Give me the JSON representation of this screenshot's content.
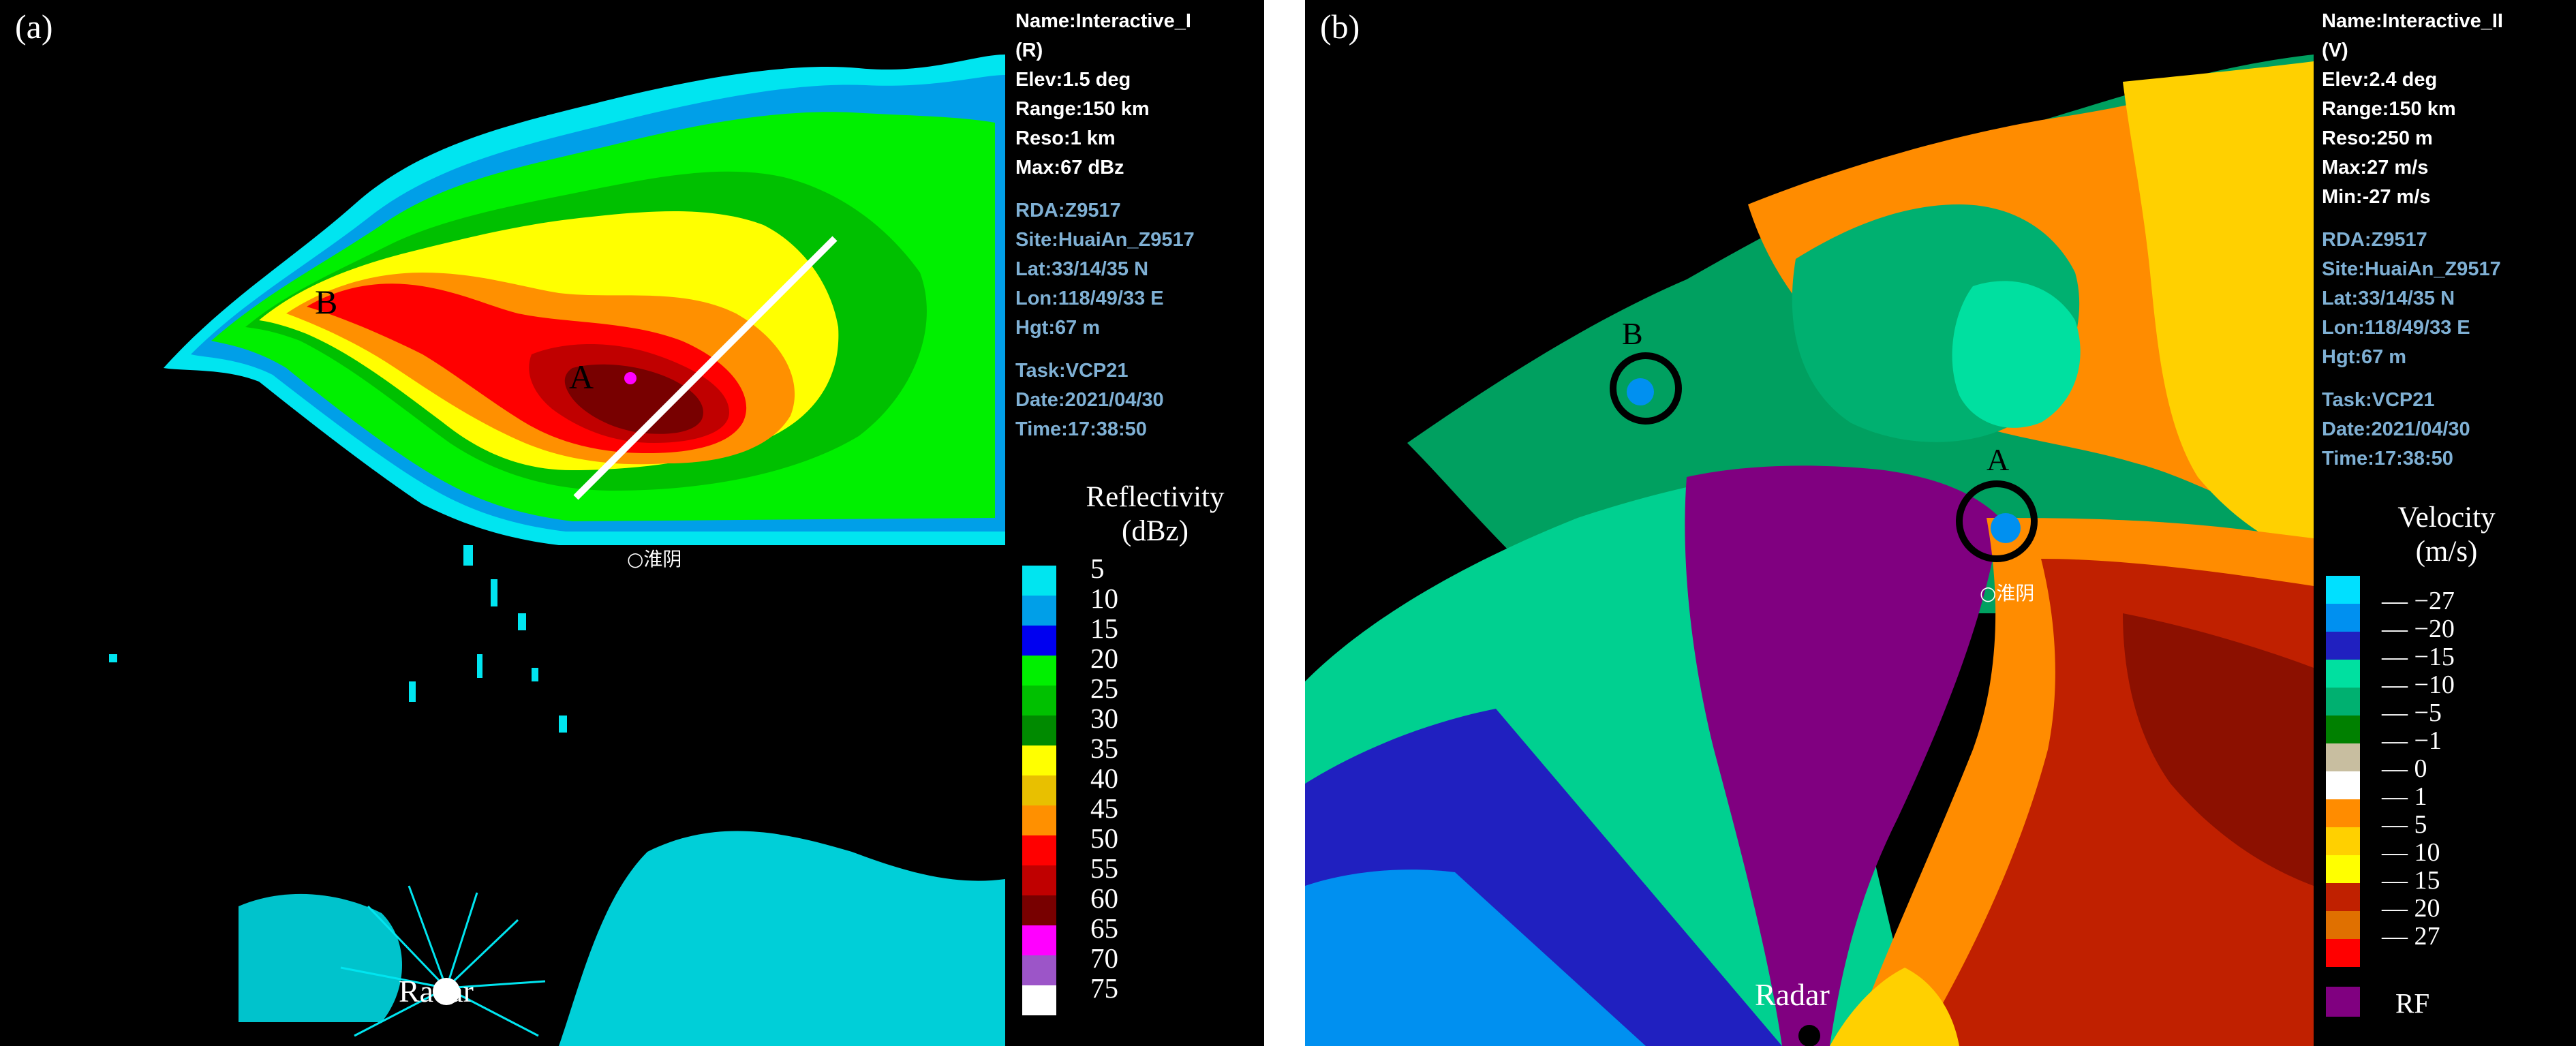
{
  "panel_a": {
    "tag": "(a)",
    "info_white": [
      "Name:Interactive_I",
      "(R)",
      "Elev:1.5 deg",
      "Range:150 km",
      "Reso:1 km",
      "Max:67 dBz"
    ],
    "info_site": [
      "RDA:Z9517",
      "Site:HuaiAn_Z9517",
      "Lat:33/14/35 N",
      "Lon:118/49/33 E",
      "Hgt:67 m"
    ],
    "info_task": [
      "Task:VCP21",
      "Date:2021/04/30",
      "Time:17:38:50"
    ],
    "legend_title_1": "Reflectivity",
    "legend_title_2": "(dBz)",
    "legend_labels": [
      "5",
      "10",
      "15",
      "20",
      "25",
      "30",
      "35",
      "40",
      "45",
      "50",
      "55",
      "60",
      "65",
      "70",
      "75"
    ],
    "legend_colors": [
      "#00e5f0",
      "#009fe8",
      "#0000f0",
      "#00f000",
      "#00c000",
      "#008a00",
      "#ffff00",
      "#e8c000",
      "#ff9000",
      "#ff0000",
      "#c00000",
      "#780000",
      "#ff00ff",
      "#9c55c8",
      "#ffffff"
    ],
    "marker_a": "A",
    "marker_b": "B",
    "radar_label": "Radar",
    "station_label": "○淮阴"
  },
  "panel_b": {
    "tag": "(b)",
    "info_white": [
      "Name:Interactive_II",
      "(V)",
      "Elev:2.4 deg",
      "Range:150 km",
      "Reso:250 m",
      "Max:27 m/s",
      "Min:-27 m/s"
    ],
    "info_site": [
      "RDA:Z9517",
      "Site:HuaiAn_Z9517",
      "Lat:33/14/35 N",
      "Lon:118/49/33 E",
      "Hgt:67 m"
    ],
    "info_task": [
      "Task:VCP21",
      "Date:2021/04/30",
      "Time:17:38:50"
    ],
    "legend_title_1": "Velocity",
    "legend_title_2": "(m/s)",
    "legend_labels": [
      "−27",
      "−20",
      "−15",
      "−10",
      "−5",
      "−1",
      "0",
      "1",
      "5",
      "10",
      "15",
      "20",
      "27"
    ],
    "legend_colors": [
      "#00e0ff",
      "#0090f0",
      "#2020c0",
      "#00e0a0",
      "#00b070",
      "#008000",
      "#c8bea0",
      "#ffffff",
      "#ff8c00",
      "#ffd000",
      "#ffff00",
      "#c02000",
      "#e07000",
      "#ff0000"
    ],
    "rf_label": "RF",
    "rf_color": "#800080",
    "marker_a": "A",
    "marker_b": "B",
    "radar_label": "Radar",
    "station_label": "○淮阴"
  }
}
